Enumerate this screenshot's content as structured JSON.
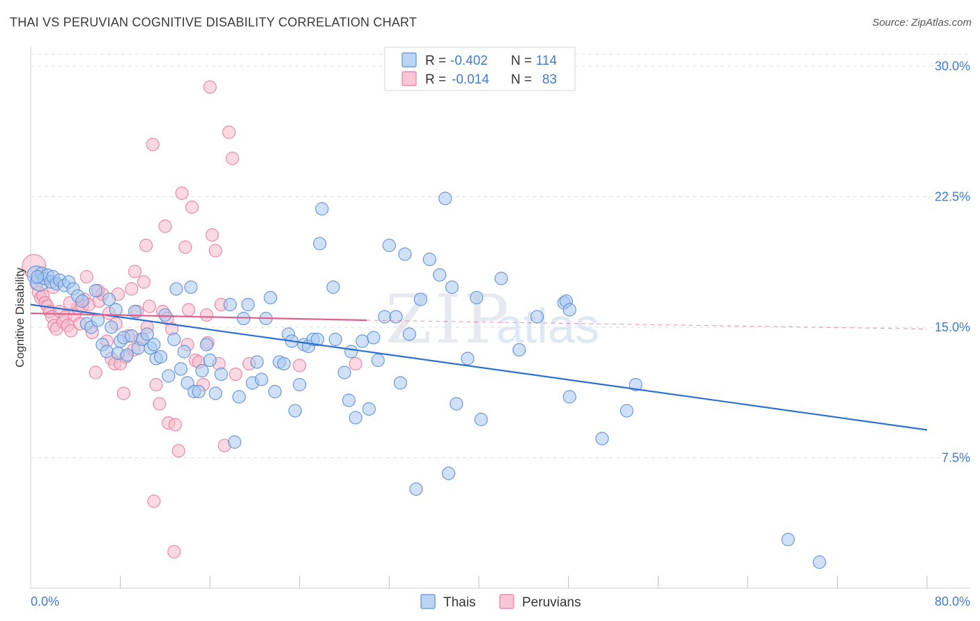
{
  "title": "THAI VS PERUVIAN COGNITIVE DISABILITY CORRELATION CHART",
  "source": "Source: ZipAtlas.com",
  "watermark": {
    "zip": "ZIP",
    "atlas": "atlas"
  },
  "colors": {
    "thai_fill": "#a9c8f0",
    "thai_stroke": "#5b8fd6",
    "thai_line": "#2b6fd3",
    "peru_fill": "#f6b9cc",
    "peru_stroke": "#e57ea0",
    "peru_line": "#e0608b",
    "grid": "#dedede",
    "tick_text": "#3e7bd3"
  },
  "chart_data": {
    "type": "scatter",
    "title": "THAI VS PERUVIAN COGNITIVE DISABILITY CORRELATION CHART",
    "xlabel": "",
    "ylabel": "Cognitive Disability",
    "xlim": [
      0,
      80
    ],
    "ylim": [
      0,
      31
    ],
    "x_tick_labels": [
      "0.0%",
      "80.0%"
    ],
    "y_ticks": [
      7.5,
      15.0,
      22.5,
      30.0
    ],
    "y_tick_labels": [
      "7.5%",
      "15.0%",
      "22.5%",
      "30.0%"
    ],
    "grid": true,
    "legend_position": "top-center",
    "legend": [
      {
        "r_label": "R = ",
        "r": "-0.402",
        "n_label": "N = ",
        "n": "114"
      },
      {
        "r_label": "R = ",
        "r": "-0.014",
        "n_label": "N = ",
        "n": "83"
      }
    ],
    "series": [
      {
        "name": "Thais",
        "trend": {
          "x": [
            0,
            80
          ],
          "y": [
            16.3,
            9.1
          ],
          "dashed_from": null
        },
        "points": [
          [
            0.5,
            18.0
          ],
          [
            0.8,
            17.6
          ],
          [
            1.0,
            18.1
          ],
          [
            1.2,
            17.8
          ],
          [
            1.5,
            18.0
          ],
          [
            1.8,
            17.6
          ],
          [
            2.0,
            17.9
          ],
          [
            2.3,
            17.5
          ],
          [
            2.6,
            17.7
          ],
          [
            3.0,
            17.4
          ],
          [
            3.4,
            17.6
          ],
          [
            3.8,
            17.2
          ],
          [
            4.2,
            16.8
          ],
          [
            4.6,
            16.5
          ],
          [
            5.0,
            15.2
          ],
          [
            5.4,
            15.0
          ],
          [
            5.8,
            17.1
          ],
          [
            6.0,
            15.4
          ],
          [
            6.4,
            14.0
          ],
          [
            6.8,
            13.6
          ],
          [
            7.0,
            16.6
          ],
          [
            7.2,
            15.0
          ],
          [
            7.6,
            16.0
          ],
          [
            7.8,
            13.5
          ],
          [
            8.0,
            14.2
          ],
          [
            8.3,
            14.4
          ],
          [
            8.6,
            13.4
          ],
          [
            9.0,
            14.5
          ],
          [
            9.3,
            15.9
          ],
          [
            9.6,
            13.8
          ],
          [
            10.0,
            14.3
          ],
          [
            10.4,
            14.6
          ],
          [
            10.7,
            13.8
          ],
          [
            11.0,
            14.0
          ],
          [
            11.2,
            13.2
          ],
          [
            11.6,
            13.3
          ],
          [
            12.0,
            15.7
          ],
          [
            12.3,
            12.2
          ],
          [
            12.8,
            14.3
          ],
          [
            13.0,
            17.2
          ],
          [
            13.4,
            12.6
          ],
          [
            13.7,
            13.6
          ],
          [
            14.0,
            11.8
          ],
          [
            14.3,
            17.3
          ],
          [
            14.6,
            11.3
          ],
          [
            15.0,
            11.3
          ],
          [
            15.3,
            12.5
          ],
          [
            15.7,
            14.0
          ],
          [
            16.0,
            13.1
          ],
          [
            16.5,
            11.2
          ],
          [
            17.0,
            12.3
          ],
          [
            17.8,
            16.3
          ],
          [
            18.2,
            8.4
          ],
          [
            18.6,
            11.0
          ],
          [
            19.0,
            15.5
          ],
          [
            19.4,
            16.3
          ],
          [
            19.8,
            11.8
          ],
          [
            20.2,
            13.0
          ],
          [
            20.6,
            12.0
          ],
          [
            21.0,
            15.5
          ],
          [
            21.4,
            16.7
          ],
          [
            21.8,
            11.3
          ],
          [
            22.2,
            13.0
          ],
          [
            22.6,
            12.9
          ],
          [
            23.0,
            14.6
          ],
          [
            23.3,
            14.2
          ],
          [
            23.6,
            10.2
          ],
          [
            24.0,
            11.7
          ],
          [
            24.4,
            14.0
          ],
          [
            24.8,
            13.9
          ],
          [
            25.2,
            14.3
          ],
          [
            25.6,
            14.3
          ],
          [
            26.0,
            21.8
          ],
          [
            25.8,
            19.8
          ],
          [
            27.0,
            17.3
          ],
          [
            27.2,
            14.3
          ],
          [
            28.0,
            12.4
          ],
          [
            28.4,
            10.8
          ],
          [
            28.6,
            13.6
          ],
          [
            29.0,
            9.8
          ],
          [
            29.6,
            14.2
          ],
          [
            30.2,
            10.3
          ],
          [
            30.6,
            14.4
          ],
          [
            31.0,
            13.1
          ],
          [
            31.6,
            15.6
          ],
          [
            32.0,
            19.7
          ],
          [
            32.6,
            15.6
          ],
          [
            33.0,
            11.8
          ],
          [
            33.4,
            19.2
          ],
          [
            33.8,
            14.6
          ],
          [
            34.4,
            5.7
          ],
          [
            34.8,
            16.6
          ],
          [
            35.6,
            18.9
          ],
          [
            36.5,
            18.0
          ],
          [
            37.0,
            22.4
          ],
          [
            37.3,
            6.6
          ],
          [
            37.6,
            17.3
          ],
          [
            38.0,
            10.6
          ],
          [
            39.0,
            13.2
          ],
          [
            39.8,
            16.7
          ],
          [
            40.2,
            9.7
          ],
          [
            42.0,
            17.8
          ],
          [
            43.6,
            13.7
          ],
          [
            45.2,
            15.6
          ],
          [
            47.6,
            16.4
          ],
          [
            47.8,
            16.5
          ],
          [
            48.1,
            16.0
          ],
          [
            48.1,
            11.0
          ],
          [
            51.0,
            8.6
          ],
          [
            53.2,
            10.2
          ],
          [
            54.0,
            11.7
          ],
          [
            67.6,
            2.8
          ],
          [
            70.4,
            1.5
          ],
          [
            0.6,
            17.9
          ]
        ]
      },
      {
        "name": "Peruvians",
        "trend": {
          "x": [
            0,
            30,
            80
          ],
          "y": [
            15.8,
            15.4,
            14.9
          ],
          "dashed_from": 30
        },
        "points": [
          [
            0.3,
            18.5
          ],
          [
            0.5,
            17.5
          ],
          [
            0.7,
            17.0
          ],
          [
            0.9,
            16.7
          ],
          [
            1.1,
            16.8
          ],
          [
            1.3,
            16.4
          ],
          [
            1.5,
            16.2
          ],
          [
            1.7,
            15.9
          ],
          [
            1.9,
            15.6
          ],
          [
            2.1,
            15.1
          ],
          [
            2.3,
            14.9
          ],
          [
            2.6,
            15.9
          ],
          [
            2.9,
            15.3
          ],
          [
            3.1,
            15.6
          ],
          [
            3.3,
            15.1
          ],
          [
            3.6,
            14.8
          ],
          [
            3.9,
            15.7
          ],
          [
            4.2,
            16.1
          ],
          [
            4.4,
            15.2
          ],
          [
            4.6,
            16.2
          ],
          [
            4.8,
            16.6
          ],
          [
            5.0,
            17.9
          ],
          [
            5.2,
            16.3
          ],
          [
            5.5,
            14.7
          ],
          [
            5.8,
            12.4
          ],
          [
            6.1,
            16.5
          ],
          [
            6.4,
            16.9
          ],
          [
            6.8,
            14.2
          ],
          [
            7.0,
            15.8
          ],
          [
            7.2,
            13.2
          ],
          [
            7.5,
            12.9
          ],
          [
            7.8,
            16.9
          ],
          [
            8.0,
            12.9
          ],
          [
            8.3,
            11.2
          ],
          [
            8.5,
            13.3
          ],
          [
            8.7,
            14.5
          ],
          [
            9.0,
            17.2
          ],
          [
            9.3,
            18.2
          ],
          [
            9.5,
            15.9
          ],
          [
            9.8,
            14.3
          ],
          [
            10.1,
            17.6
          ],
          [
            10.3,
            19.7
          ],
          [
            10.6,
            16.2
          ],
          [
            10.9,
            25.5
          ],
          [
            11.2,
            11.7
          ],
          [
            11.5,
            10.6
          ],
          [
            11.8,
            15.9
          ],
          [
            12.0,
            20.8
          ],
          [
            12.3,
            9.5
          ],
          [
            12.6,
            14.9
          ],
          [
            12.9,
            9.4
          ],
          [
            13.2,
            7.9
          ],
          [
            13.5,
            22.7
          ],
          [
            13.8,
            19.6
          ],
          [
            14.1,
            16.0
          ],
          [
            14.4,
            21.9
          ],
          [
            14.7,
            13.1
          ],
          [
            15.0,
            13.0
          ],
          [
            15.4,
            11.7
          ],
          [
            15.8,
            14.1
          ],
          [
            16.2,
            20.3
          ],
          [
            16.5,
            19.4
          ],
          [
            16.8,
            12.9
          ],
          [
            17.3,
            8.2
          ],
          [
            17.7,
            26.2
          ],
          [
            18.0,
            24.7
          ],
          [
            18.3,
            12.3
          ],
          [
            16.0,
            28.8
          ],
          [
            11.0,
            5.0
          ],
          [
            12.8,
            2.1
          ],
          [
            2.0,
            17.3
          ],
          [
            3.5,
            16.4
          ],
          [
            6.0,
            17.1
          ],
          [
            7.6,
            15.2
          ],
          [
            9.2,
            13.7
          ],
          [
            10.4,
            15.0
          ],
          [
            12.2,
            15.5
          ],
          [
            14.0,
            14.0
          ],
          [
            15.7,
            15.7
          ],
          [
            17.0,
            16.3
          ],
          [
            19.5,
            12.9
          ],
          [
            24.0,
            12.8
          ],
          [
            29.0,
            12.9
          ]
        ]
      }
    ]
  },
  "bottom_legend": [
    "Thais",
    "Peruvians"
  ]
}
